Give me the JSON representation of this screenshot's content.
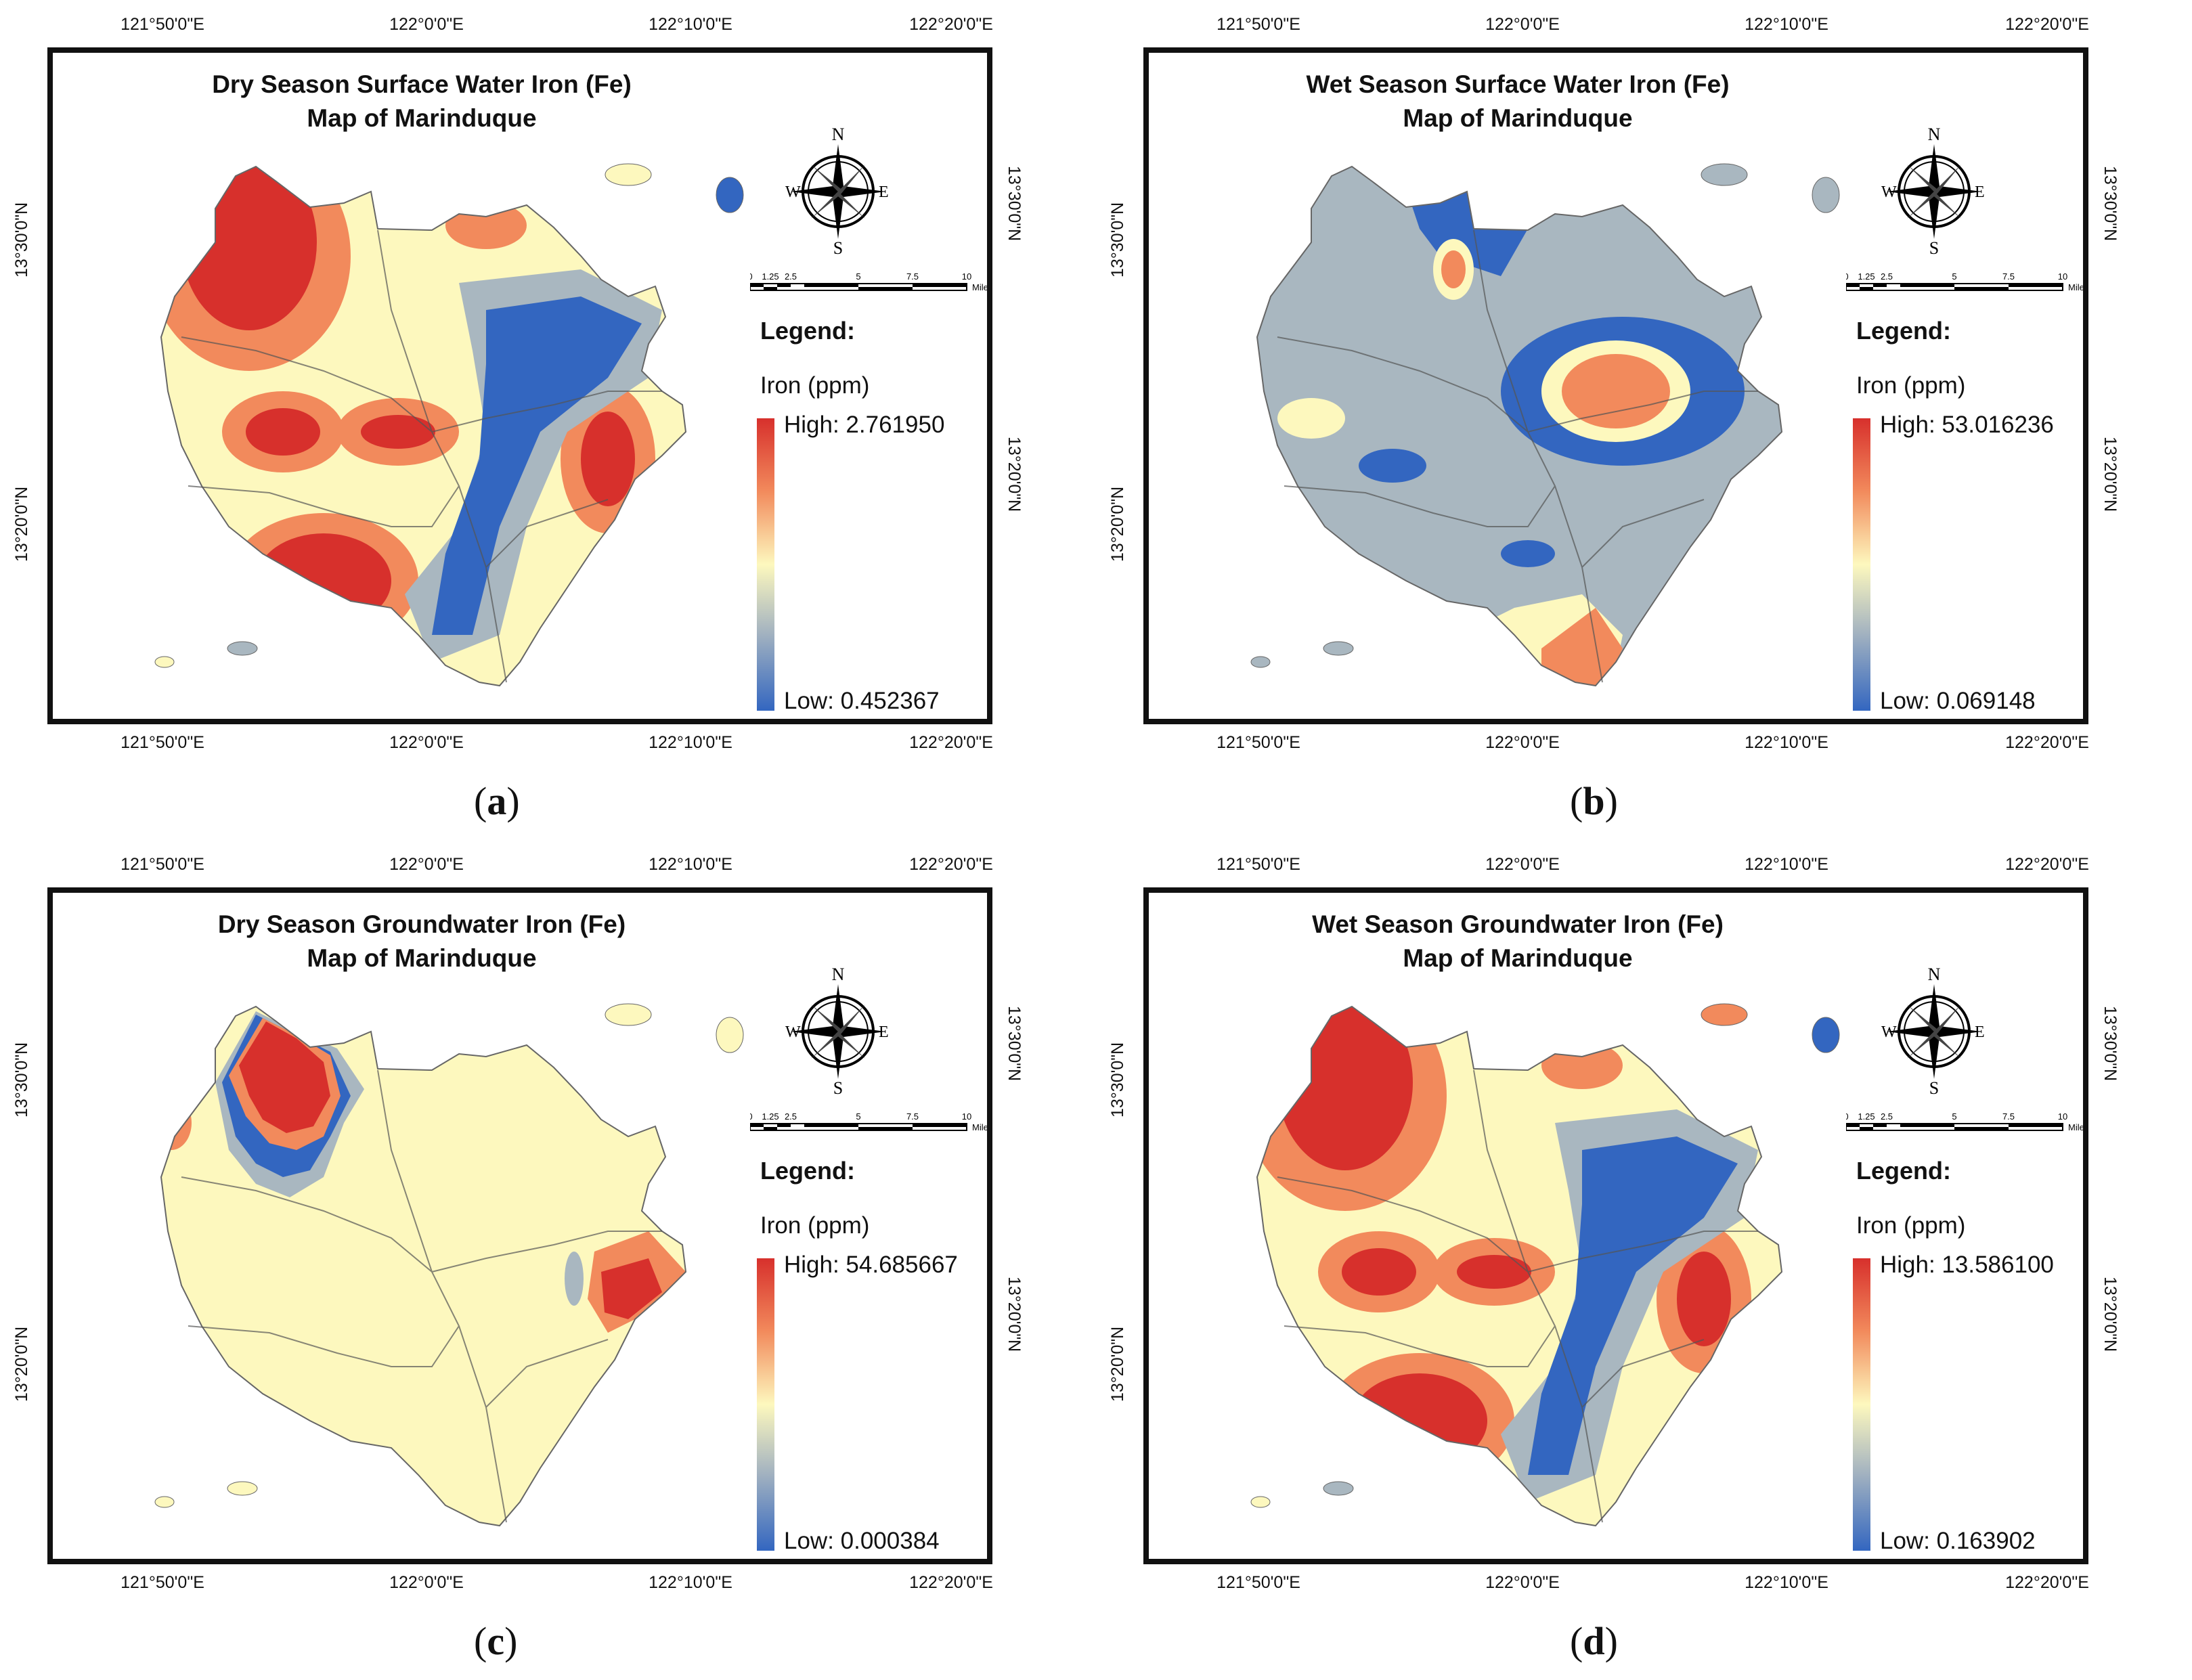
{
  "axes": {
    "lon_ticks": [
      "121°50'0\"E",
      "122°0'0\"E",
      "122°10'0\"E",
      "122°20'0\"E"
    ],
    "lat_ticks": [
      "13°30'0\"N",
      "13°20'0\"N"
    ]
  },
  "compass": {
    "n": "N",
    "s": "S",
    "e": "E",
    "w": "W"
  },
  "scale": {
    "ticks": [
      "0",
      "1.25",
      "2.5",
      "5",
      "7.5",
      "10"
    ],
    "unit": "Miles"
  },
  "legend": {
    "title": "Legend:",
    "field": "Iron (ppm)",
    "high_prefix": "High:",
    "low_prefix": "Low:"
  },
  "colors": {
    "high": "#d7302c",
    "mid_high": "#f28a5c",
    "mid": "#fdf8be",
    "mid_low": "#a9b7c0",
    "low": "#3366c0"
  },
  "panels": [
    {
      "id": "a",
      "caption": "a",
      "title1": "Dry Season Surface Water Iron (Fe)",
      "title2": "Map of Marinduque",
      "high": "High: 2.761950",
      "low": "Low: 0.452367"
    },
    {
      "id": "b",
      "caption": "b",
      "title1": "Wet Season Surface Water Iron (Fe)",
      "title2": "Map of Marinduque",
      "high": "High: 53.016236",
      "low": "Low: 0.069148"
    },
    {
      "id": "c",
      "caption": "c",
      "title1": "Dry Season Groundwater Iron (Fe)",
      "title2": "Map of Marinduque",
      "high": "High: 54.685667",
      "low": "Low: 0.000384"
    },
    {
      "id": "d",
      "caption": "d",
      "title1": "Wet Season Groundwater Iron (Fe)",
      "title2": "Map of Marinduque",
      "high": "High: 13.586100",
      "low": "Low: 0.163902"
    }
  ]
}
